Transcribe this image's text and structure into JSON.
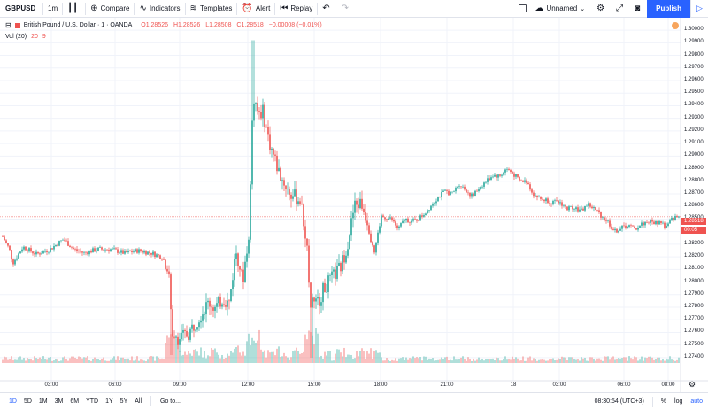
{
  "toolbar": {
    "symbol": "GBPUSD",
    "interval": "1m",
    "compare_label": "Compare",
    "indicators_label": "Indicators",
    "templates_label": "Templates",
    "alert_label": "Alert",
    "replay_label": "Replay",
    "layout_name": "Unnamed",
    "publish_label": "Publish"
  },
  "legend": {
    "title": "British Pound / U.S. Dollar · 1 · OANDA",
    "open": "O1.28526",
    "high": "H1.28526",
    "low": "L1.28508",
    "close": "C1.28518",
    "change": "−0.00008 (−0.01%)",
    "vol_label": "Vol (20)",
    "vol_value1": "20",
    "vol_value2": "9"
  },
  "price_axis": {
    "labels": [
      "1.30000",
      "1.29900",
      "1.29800",
      "1.29700",
      "1.29600",
      "1.29500",
      "1.29400",
      "1.29300",
      "1.29200",
      "1.29100",
      "1.29000",
      "1.28900",
      "1.28800",
      "1.28700",
      "1.28600",
      "1.28500",
      "1.28400",
      "1.28300",
      "1.28200",
      "1.28100",
      "1.28000",
      "1.27900",
      "1.27800",
      "1.27700",
      "1.27600",
      "1.27500",
      "1.27400"
    ],
    "last_price": "1.28518",
    "countdown": "00:05"
  },
  "time_axis": {
    "labels": [
      "03:00",
      "06:00",
      "09:00",
      "12:00",
      "15:00",
      "18:00",
      "21:00",
      "18",
      "03:00",
      "06:00",
      "08:00"
    ]
  },
  "bottombar": {
    "ranges": [
      "1D",
      "5D",
      "1M",
      "3M",
      "6M",
      "YTD",
      "1Y",
      "5Y",
      "All"
    ],
    "goto_label": "Go to...",
    "clock": "08:30:54 (UTC+3)",
    "percent_label": "%",
    "log_label": "log",
    "auto_label": "auto"
  },
  "colors": {
    "up": "#26a69a",
    "down": "#ef5350",
    "accent": "#2962ff",
    "grid": "#f0f3fa"
  },
  "chart_data": {
    "type": "candlestick",
    "symbol": "GBPUSD",
    "ylim": [
      1.2735,
      1.3005
    ],
    "points": [
      [
        0,
        1.2836
      ],
      [
        0.01,
        1.2826
      ],
      [
        0.015,
        1.2815
      ],
      [
        0.03,
        1.2828
      ],
      [
        0.05,
        1.2822
      ],
      [
        0.07,
        1.2826
      ],
      [
        0.09,
        1.2834
      ],
      [
        0.105,
        1.2826
      ],
      [
        0.12,
        1.2823
      ],
      [
        0.14,
        1.2826
      ],
      [
        0.16,
        1.2826
      ],
      [
        0.18,
        1.2823
      ],
      [
        0.2,
        1.2825
      ],
      [
        0.22,
        1.2823
      ],
      [
        0.235,
        1.282
      ],
      [
        0.245,
        1.2812
      ],
      [
        0.25,
        1.2762
      ],
      [
        0.26,
        1.2755
      ],
      [
        0.275,
        1.2759
      ],
      [
        0.29,
        1.2772
      ],
      [
        0.305,
        1.2784
      ],
      [
        0.315,
        1.2779
      ],
      [
        0.325,
        1.2787
      ],
      [
        0.335,
        1.2783
      ],
      [
        0.345,
        1.2825
      ],
      [
        0.35,
        1.2815
      ],
      [
        0.355,
        1.28
      ],
      [
        0.365,
        1.2843
      ],
      [
        0.37,
        1.2948
      ],
      [
        0.375,
        1.2935
      ],
      [
        0.385,
        1.2935
      ],
      [
        0.395,
        1.291
      ],
      [
        0.41,
        1.2885
      ],
      [
        0.425,
        1.287
      ],
      [
        0.44,
        1.2865
      ],
      [
        0.45,
        1.283
      ],
      [
        0.455,
        1.2785
      ],
      [
        0.465,
        1.2782
      ],
      [
        0.475,
        1.2795
      ],
      [
        0.49,
        1.2805
      ],
      [
        0.5,
        1.2812
      ],
      [
        0.51,
        1.283
      ],
      [
        0.52,
        1.286
      ],
      [
        0.53,
        1.2863
      ],
      [
        0.54,
        1.2848
      ],
      [
        0.55,
        1.2825
      ],
      [
        0.56,
        1.2852
      ],
      [
        0.575,
        1.285
      ],
      [
        0.585,
        1.2842
      ],
      [
        0.595,
        1.285
      ],
      [
        0.605,
        1.2848
      ],
      [
        0.615,
        1.285
      ],
      [
        0.625,
        1.2855
      ],
      [
        0.635,
        1.2862
      ],
      [
        0.645,
        1.2868
      ],
      [
        0.655,
        1.2872
      ],
      [
        0.665,
        1.287
      ],
      [
        0.675,
        1.2878
      ],
      [
        0.685,
        1.2873
      ],
      [
        0.695,
        1.2868
      ],
      [
        0.705,
        1.2875
      ],
      [
        0.715,
        1.288
      ],
      [
        0.725,
        1.2885
      ],
      [
        0.735,
        1.2884
      ],
      [
        0.745,
        1.289
      ],
      [
        0.755,
        1.2886
      ],
      [
        0.765,
        1.288
      ],
      [
        0.775,
        1.288
      ],
      [
        0.785,
        1.287
      ],
      [
        0.795,
        1.2866
      ],
      [
        0.805,
        1.2865
      ],
      [
        0.815,
        1.2863
      ],
      [
        0.825,
        1.2863
      ],
      [
        0.835,
        1.2858
      ],
      [
        0.845,
        1.286
      ],
      [
        0.855,
        1.2856
      ],
      [
        0.865,
        1.2862
      ],
      [
        0.875,
        1.2858
      ],
      [
        0.885,
        1.2853
      ],
      [
        0.895,
        1.2848
      ],
      [
        0.905,
        1.284
      ],
      [
        0.915,
        1.2843
      ],
      [
        0.925,
        1.2845
      ],
      [
        0.935,
        1.2842
      ],
      [
        0.945,
        1.2846
      ],
      [
        0.955,
        1.2848
      ],
      [
        0.965,
        1.2847
      ],
      [
        0.975,
        1.2848
      ],
      [
        0.98,
        1.2843
      ],
      [
        0.985,
        1.2846
      ],
      [
        0.99,
        1.285
      ],
      [
        1,
        1.2852
      ]
    ]
  }
}
